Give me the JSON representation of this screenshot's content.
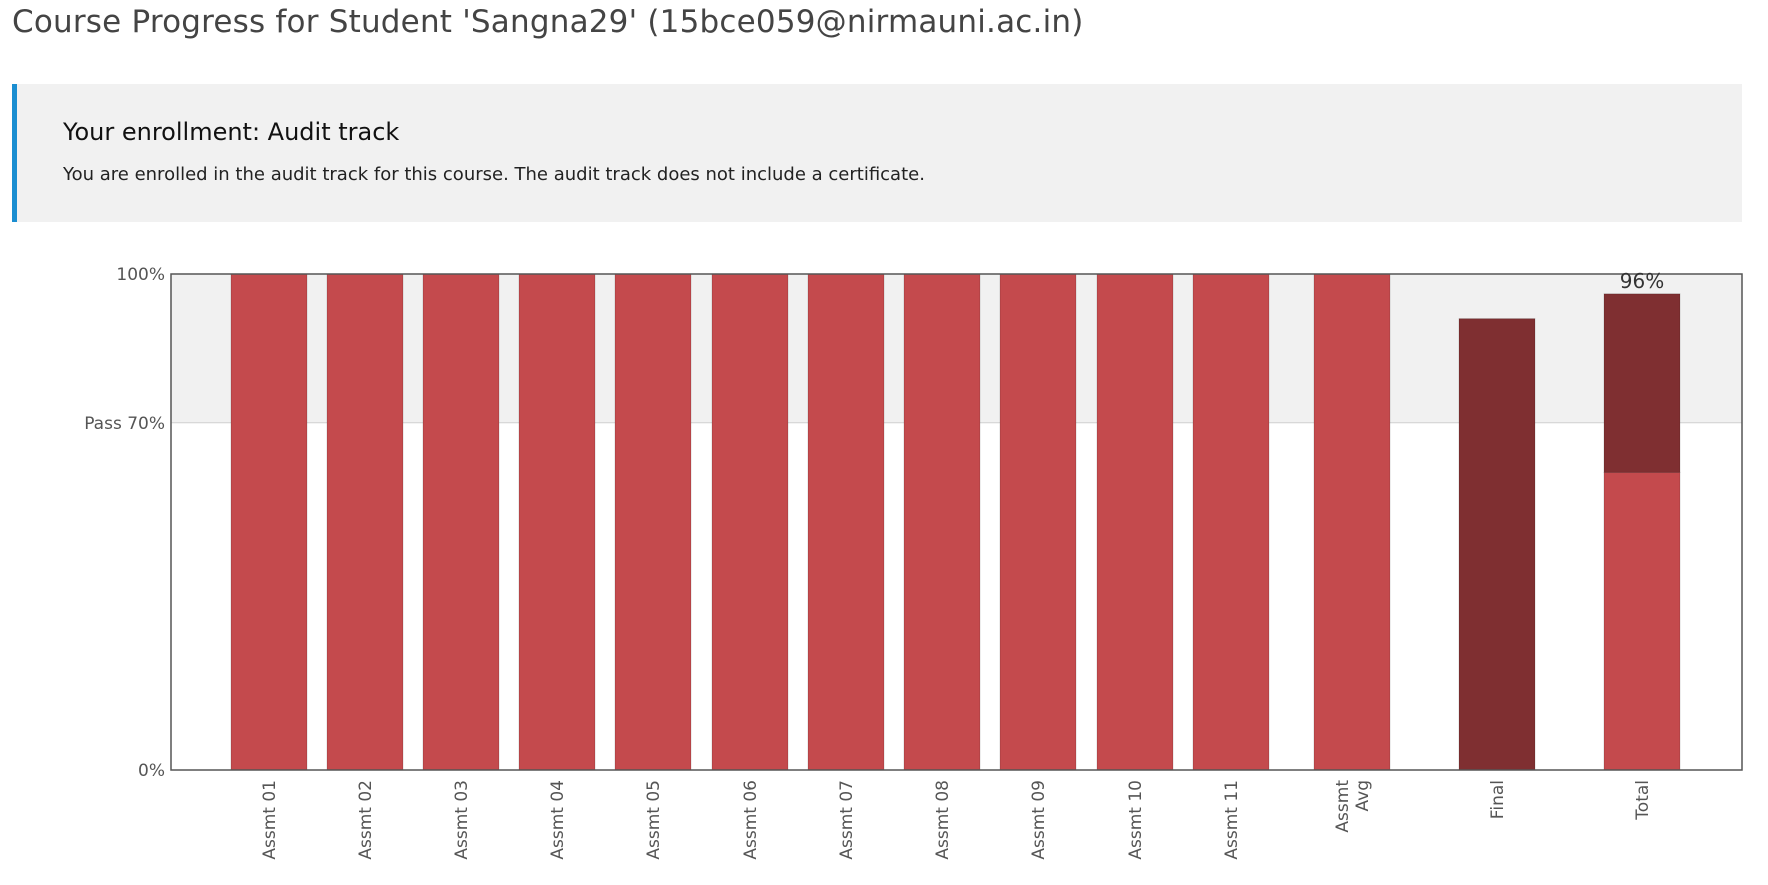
{
  "page": {
    "title": "Course Progress for Student 'Sangna29' (15bce059@nirmauni.ac.in)"
  },
  "enrollment": {
    "heading": "Your enrollment: Audit track",
    "message": "You are enrolled in the audit track for this course. The audit track does not include a certificate."
  },
  "colors": {
    "accent": "#1b8ed1",
    "bar": "#c44a4d",
    "bar_dark": "#7f2f31",
    "pass_band": "#f1f1f1"
  },
  "chart_data": {
    "type": "bar",
    "ylim": [
      0,
      100
    ],
    "y_ticks": [
      {
        "value": 0,
        "label": "0%"
      },
      {
        "value": 70,
        "label": "Pass 70%"
      },
      {
        "value": 100,
        "label": "100%"
      }
    ],
    "pass_threshold": 70,
    "categories": [
      "Assmt 01",
      "Assmt 02",
      "Assmt 03",
      "Assmt 04",
      "Assmt 05",
      "Assmt 06",
      "Assmt 07",
      "Assmt 08",
      "Assmt 09",
      "Assmt 10",
      "Assmt 11",
      "Assmt Avg",
      "Final",
      "Total"
    ],
    "category_label_lines": [
      [
        "Assmt 01"
      ],
      [
        "Assmt 02"
      ],
      [
        "Assmt 03"
      ],
      [
        "Assmt 04"
      ],
      [
        "Assmt 05"
      ],
      [
        "Assmt 06"
      ],
      [
        "Assmt 07"
      ],
      [
        "Assmt 08"
      ],
      [
        "Assmt 09"
      ],
      [
        "Assmt 10"
      ],
      [
        "Assmt 11"
      ],
      [
        "Assmt",
        "Avg"
      ],
      [
        "Final"
      ],
      [
        "Total"
      ]
    ],
    "series": [
      {
        "values": [
          100,
          100,
          100,
          100,
          100,
          100,
          100,
          100,
          100,
          100,
          100,
          100,
          0,
          60
        ],
        "color": "#c44a4d"
      },
      {
        "values": [
          0,
          0,
          0,
          0,
          0,
          0,
          0,
          0,
          0,
          0,
          0,
          0,
          91,
          36
        ],
        "color": "#7f2f31"
      }
    ],
    "total_label": "96%"
  }
}
